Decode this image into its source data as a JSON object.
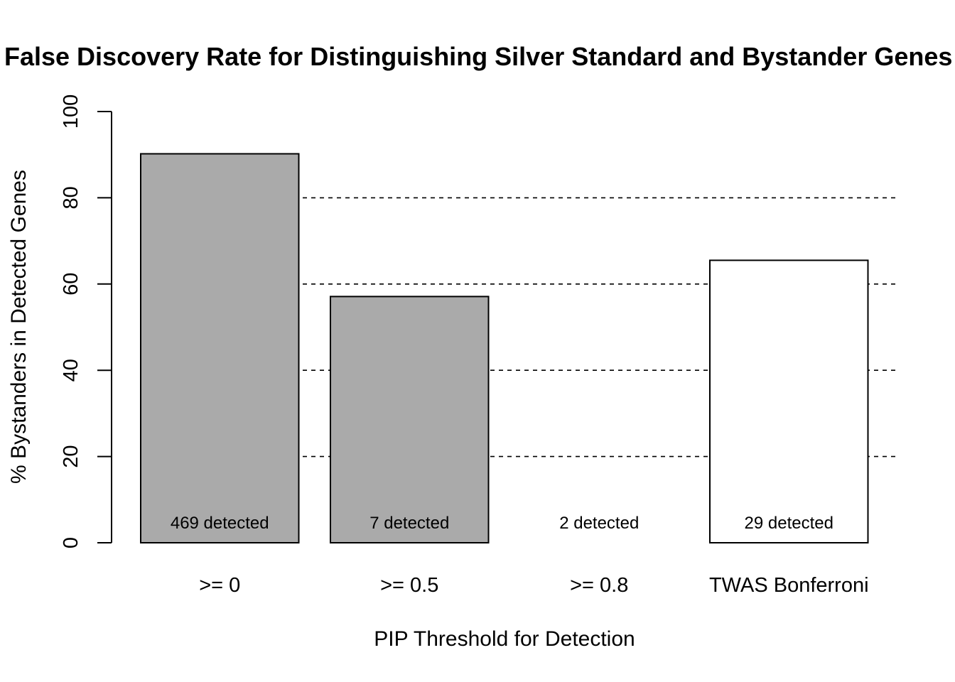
{
  "chart_data": {
    "type": "bar",
    "title": "False Discovery Rate for Distinguishing Silver Standard and Bystander Genes",
    "xlabel": "PIP Threshold for Detection",
    "ylabel": "% Bystanders in Detected Genes",
    "categories": [
      ">= 0",
      ">= 0.5",
      ">= 0.8",
      "TWAS Bonferroni"
    ],
    "values": [
      90.2,
      57.1,
      0,
      65.5
    ],
    "data_labels": [
      "469 detected",
      "7 detected",
      "2 detected",
      "29 detected"
    ],
    "bar_colors": [
      "#aaaaaa",
      "#aaaaaa",
      "#aaaaaa",
      "#ffffff"
    ],
    "ylim": [
      0,
      100
    ],
    "yticks": [
      "0",
      "20",
      "40",
      "60",
      "80",
      "100"
    ],
    "grid_lines_at": [
      20,
      40,
      60,
      80
    ],
    "grid": "horizontal dashed"
  }
}
